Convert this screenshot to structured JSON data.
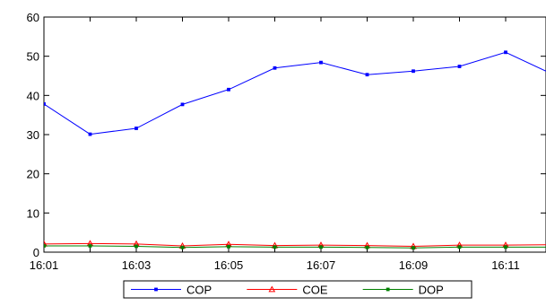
{
  "chart_data": {
    "type": "line",
    "title": "",
    "xlabel": "",
    "ylabel": "",
    "categories": [
      "16:01",
      "16:02",
      "16:03",
      "16:04",
      "16:05",
      "16:06",
      "16:07",
      "16:08",
      "16:09",
      "16:10",
      "16:11",
      "16:12"
    ],
    "x_tick_labels": [
      "16:01",
      "16:03",
      "16:05",
      "16:07",
      "16:09",
      "16:11"
    ],
    "ylim": [
      0,
      60
    ],
    "y_ticks": [
      0,
      10,
      20,
      30,
      40,
      50,
      60
    ],
    "grid": false,
    "legend_position": "bottom-center",
    "series": [
      {
        "name": "COP",
        "color": "#0000ff",
        "marker": "square",
        "values": [
          37.8,
          30.1,
          31.6,
          37.7,
          41.5,
          47.0,
          48.4,
          45.3,
          46.2,
          47.4,
          51.0,
          45.5
        ]
      },
      {
        "name": "COE",
        "color": "#ff0000",
        "marker": "triangle",
        "values": [
          2.1,
          2.2,
          2.1,
          1.6,
          2.0,
          1.7,
          1.8,
          1.7,
          1.5,
          1.8,
          1.8,
          1.9
        ]
      },
      {
        "name": "DOP",
        "color": "#008000",
        "marker": "square",
        "values": [
          1.6,
          1.6,
          1.5,
          1.2,
          1.4,
          1.3,
          1.3,
          1.2,
          1.1,
          1.3,
          1.3,
          1.3
        ]
      }
    ]
  }
}
